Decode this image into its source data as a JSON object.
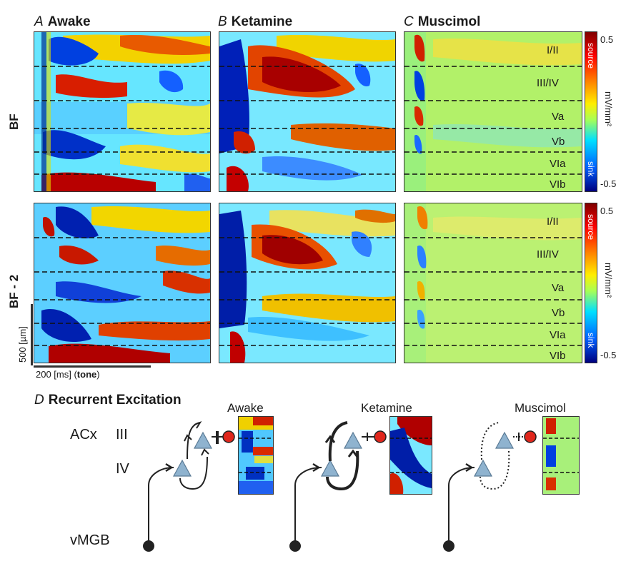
{
  "panels": [
    {
      "letter": "A",
      "name": "Awake"
    },
    {
      "letter": "B",
      "name": "Ketamine"
    },
    {
      "letter": "C",
      "name": "Muscimol"
    }
  ],
  "rows": [
    "BF",
    "BF - 2"
  ],
  "layers": [
    "I/II",
    "III/IV",
    "Va",
    "Vb",
    "VIa",
    "VIb"
  ],
  "colorbar": {
    "top_label": "source",
    "bottom_label": "sink",
    "max": "0.5",
    "min": "-0.5",
    "unit": "mV/mm²"
  },
  "scalebar": {
    "depth": "500 [µm]",
    "time_value": "200 [ms] (",
    "time_bold": "tone",
    "time_close": ")"
  },
  "panel_d": {
    "letter": "D",
    "title": "Recurrent Excitation",
    "acx": "ACx",
    "layer_iii": "III",
    "layer_iv": "IV",
    "vmgb": "vMGB",
    "conditions": [
      "Awake",
      "Ketamine",
      "Muscimol"
    ]
  },
  "colors": {
    "triangle": "#8fb3cf",
    "red_dot": "#e0261c",
    "sink": "#00007f",
    "source": "#7f0000"
  }
}
